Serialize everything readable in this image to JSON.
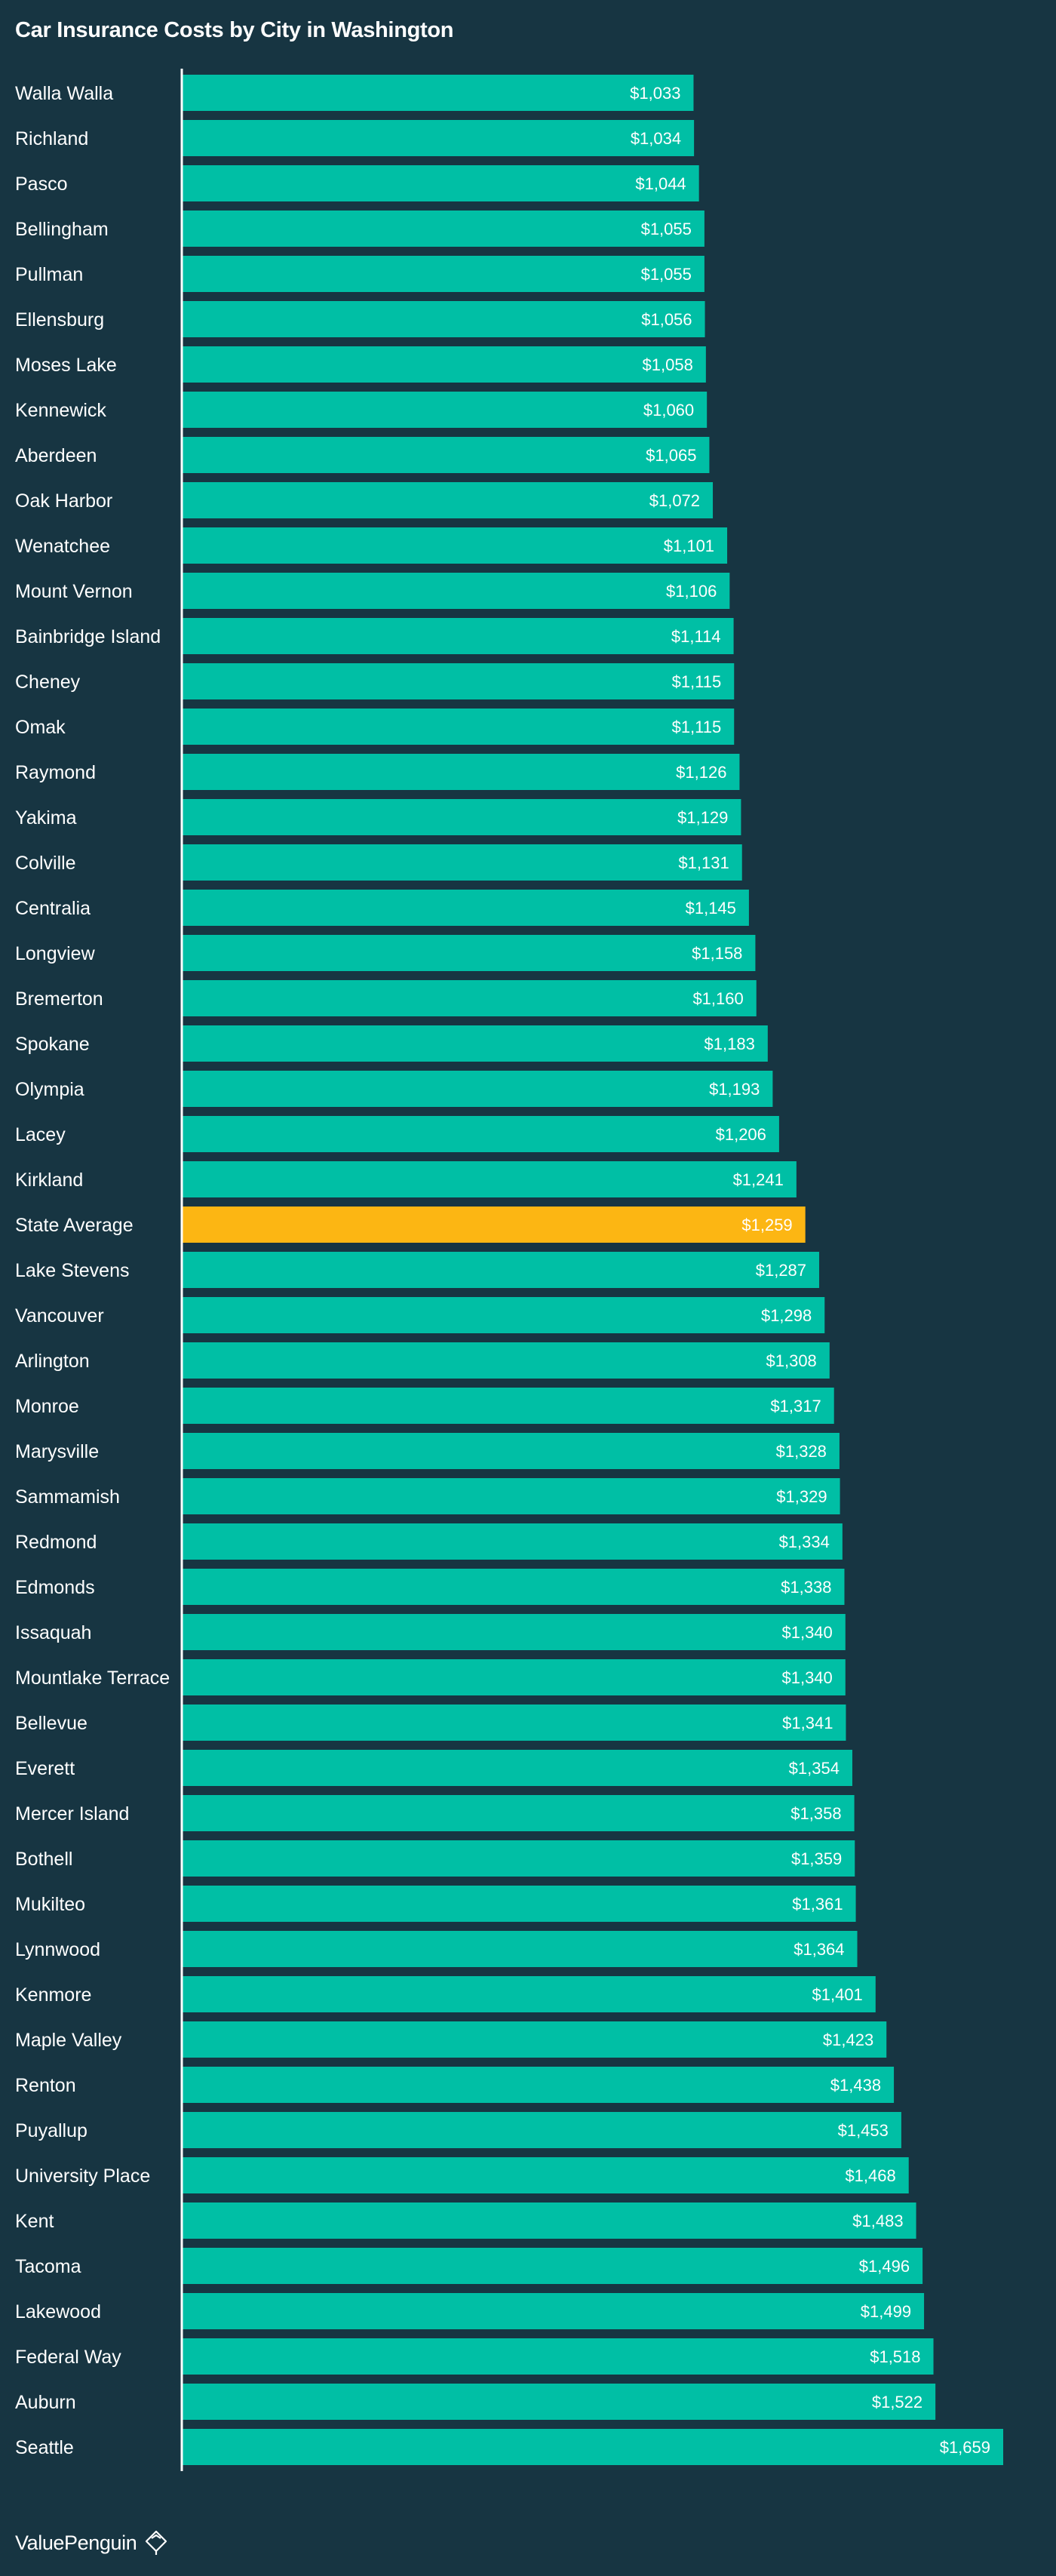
{
  "title": "Car Insurance Costs by City in Washington",
  "brand": {
    "name": "ValuePenguin",
    "icon": "penguin-pin-icon"
  },
  "colors": {
    "background": "#173542",
    "bar": "#00bfa5",
    "highlight": "#fcb613",
    "axis": "#ffffff"
  },
  "chart_data": {
    "type": "bar",
    "orientation": "horizontal",
    "title": "Car Insurance Costs by City in Washington",
    "value_prefix": "$",
    "highlight_category": "State Average",
    "grid": false,
    "categories": [
      "Walla Walla",
      "Richland",
      "Pasco",
      "Bellingham",
      "Pullman",
      "Ellensburg",
      "Moses Lake",
      "Kennewick",
      "Aberdeen",
      "Oak Harbor",
      "Wenatchee",
      "Mount Vernon",
      "Bainbridge Island",
      "Cheney",
      "Omak",
      "Raymond",
      "Yakima",
      "Colville",
      "Centralia",
      "Longview",
      "Bremerton",
      "Spokane",
      "Olympia",
      "Lacey",
      "Kirkland",
      "State Average",
      "Lake Stevens",
      "Vancouver",
      "Arlington",
      "Monroe",
      "Marysville",
      "Sammamish",
      "Redmond",
      "Edmonds",
      "Issaquah",
      "Mountlake Terrace",
      "Bellevue",
      "Everett",
      "Mercer Island",
      "Bothell",
      "Mukilteo",
      "Lynnwood",
      "Kenmore",
      "Maple Valley",
      "Renton",
      "Puyallup",
      "University Place",
      "Kent",
      "Tacoma",
      "Lakewood",
      "Federal Way",
      "Auburn",
      "Seattle"
    ],
    "values": [
      1033,
      1034,
      1044,
      1055,
      1055,
      1056,
      1058,
      1060,
      1065,
      1072,
      1101,
      1106,
      1114,
      1115,
      1115,
      1126,
      1129,
      1131,
      1145,
      1158,
      1160,
      1183,
      1193,
      1206,
      1241,
      1259,
      1287,
      1298,
      1308,
      1317,
      1328,
      1329,
      1334,
      1338,
      1340,
      1340,
      1341,
      1354,
      1358,
      1359,
      1361,
      1364,
      1401,
      1423,
      1438,
      1453,
      1468,
      1483,
      1496,
      1499,
      1518,
      1522,
      1659
    ],
    "labels": [
      "$1,033",
      "$1,034",
      "$1,044",
      "$1,055",
      "$1,055",
      "$1,056",
      "$1,058",
      "$1,060",
      "$1,065",
      "$1,072",
      "$1,101",
      "$1,106",
      "$1,114",
      "$1,115",
      "$1,115",
      "$1,126",
      "$1,129",
      "$1,131",
      "$1,145",
      "$1,158",
      "$1,160",
      "$1,183",
      "$1,193",
      "$1,206",
      "$1,241",
      "$1,259",
      "$1,287",
      "$1,298",
      "$1,308",
      "$1,317",
      "$1,328",
      "$1,329",
      "$1,334",
      "$1,338",
      "$1,340",
      "$1,340",
      "$1,341",
      "$1,354",
      "$1,358",
      "$1,359",
      "$1,361",
      "$1,364",
      "$1,401",
      "$1,423",
      "$1,438",
      "$1,453",
      "$1,468",
      "$1,483",
      "$1,496",
      "$1,499",
      "$1,518",
      "$1,522",
      "$1,659"
    ]
  }
}
